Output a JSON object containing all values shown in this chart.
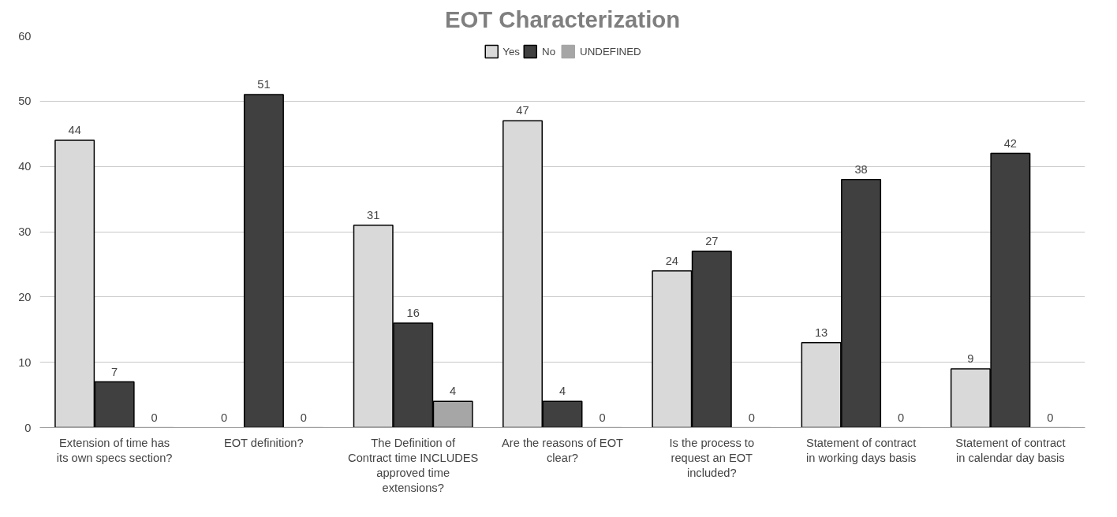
{
  "chart_data": {
    "type": "bar",
    "title": "EOT Characterization",
    "categories": [
      "Extension of time has its own specs section?",
      "EOT definition?",
      "The Definition of Contract time INCLUDES approved time extensions?",
      "Are the reasons of EOT clear?",
      "Is the process to request an EOT included?",
      "Statement of contract in working days basis",
      "Statement of contract in calendar day basis"
    ],
    "series": [
      {
        "name": "Yes",
        "color": "#d9d9d9",
        "values": [
          44,
          0,
          31,
          47,
          24,
          13,
          9
        ]
      },
      {
        "name": "No",
        "color": "#404040",
        "values": [
          7,
          51,
          16,
          4,
          27,
          38,
          42
        ]
      },
      {
        "name": "UNDEFINED",
        "color": "#a6a6a6",
        "values": [
          0,
          0,
          4,
          0,
          0,
          0,
          0
        ]
      }
    ],
    "ylim": [
      0,
      60
    ],
    "yticks": [
      0,
      10,
      20,
      30,
      40,
      50,
      60
    ],
    "grid": "y",
    "legend": "top",
    "data_labels": true
  }
}
